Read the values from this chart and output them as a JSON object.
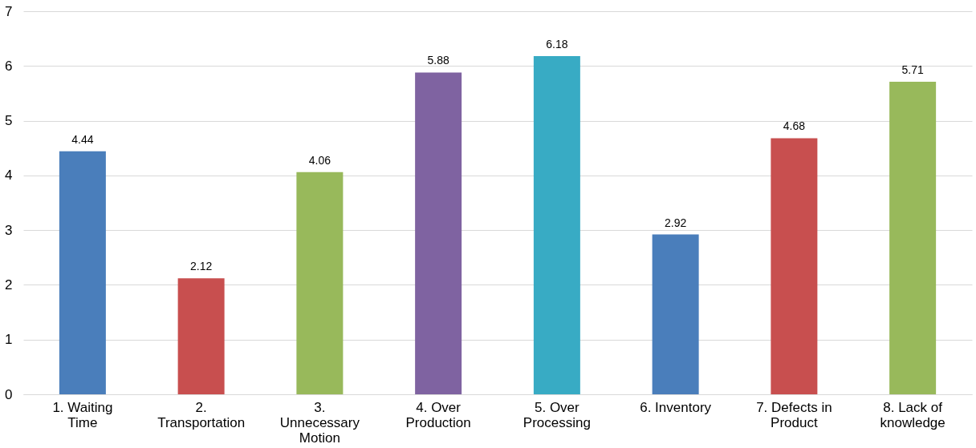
{
  "chart_data": {
    "type": "bar",
    "categories": [
      "1. Waiting Time",
      "2. Transportation",
      "3. Unnecessary Motion",
      "4. Over Production",
      "5. Over Processing",
      "6. Inventory",
      "7. Defects in Product",
      "8. Lack of knowledge"
    ],
    "values": [
      4.44,
      2.12,
      4.06,
      5.88,
      6.18,
      2.92,
      4.68,
      5.71
    ],
    "colors": [
      "#4a7ebb",
      "#c84f4f",
      "#98b95b",
      "#7f63a1",
      "#38abc4",
      "#4a7ebb",
      "#c84f4f",
      "#98b95b"
    ],
    "ylim": [
      0,
      7
    ],
    "yticks": [
      0,
      1,
      2,
      3,
      4,
      5,
      6,
      7
    ],
    "grid": "y",
    "data_labels": true
  }
}
